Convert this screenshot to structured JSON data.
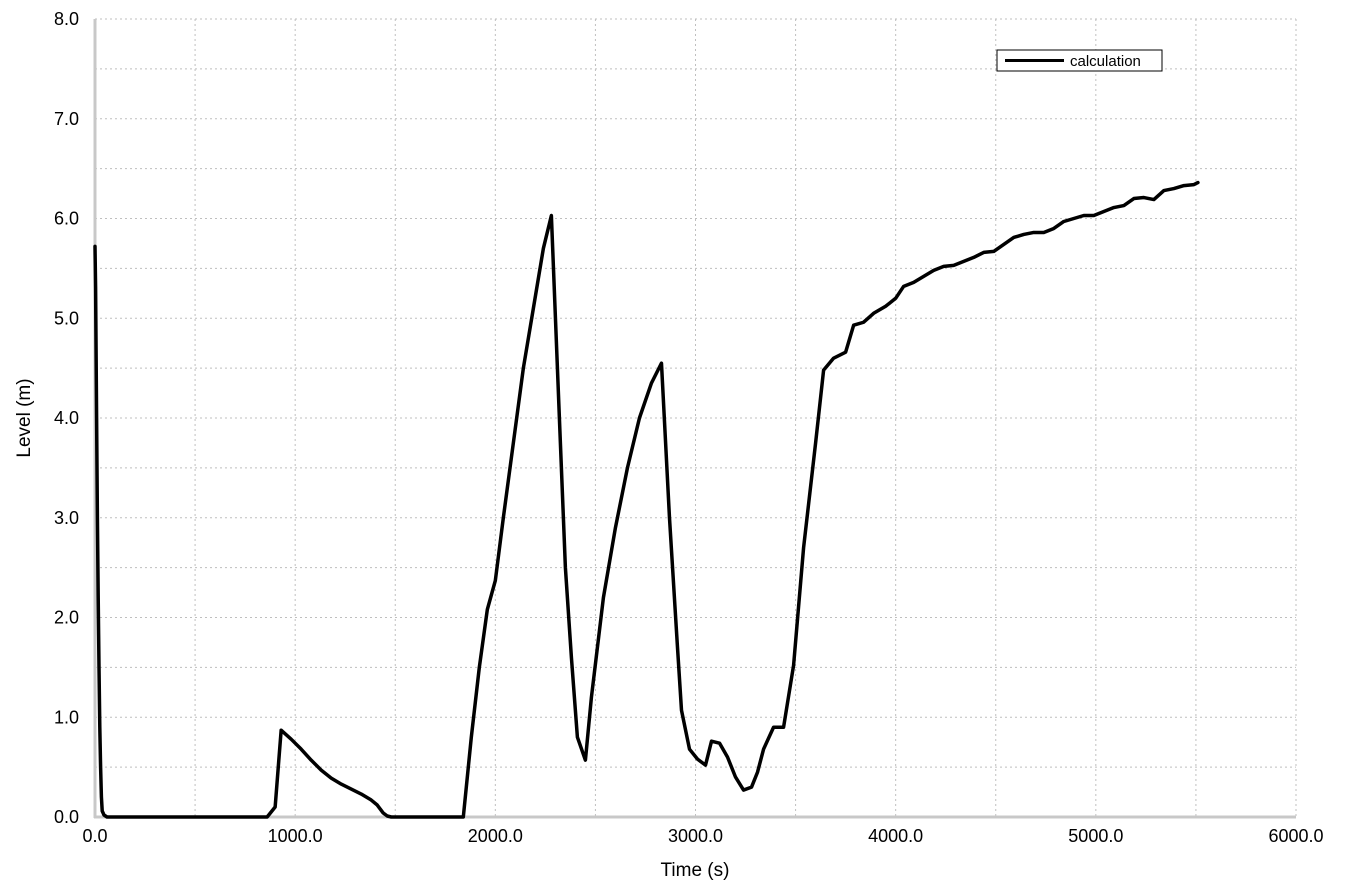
{
  "chart_data": {
    "type": "line",
    "title": "",
    "xlabel": "Time (s)",
    "ylabel": "Level (m)",
    "xlim": [
      0,
      6000
    ],
    "ylim": [
      0,
      8
    ],
    "x_ticks": [
      "0.0",
      "1000.0",
      "2000.0",
      "3000.0",
      "4000.0",
      "5000.0",
      "6000.0"
    ],
    "y_ticks": [
      "0.0",
      "1.0",
      "2.0",
      "3.0",
      "4.0",
      "5.0",
      "6.0",
      "7.0",
      "8.0"
    ],
    "grid": true,
    "legend_position": "top-right",
    "series": [
      {
        "name": "calculation",
        "color": "#000000",
        "points": [
          [
            0,
            5.72
          ],
          [
            3,
            5.3
          ],
          [
            8,
            4.0
          ],
          [
            12,
            3.0
          ],
          [
            16,
            2.2
          ],
          [
            20,
            1.5
          ],
          [
            24,
            0.9
          ],
          [
            28,
            0.5
          ],
          [
            32,
            0.2
          ],
          [
            36,
            0.06
          ],
          [
            45,
            0.02
          ],
          [
            60,
            0.0
          ],
          [
            860,
            0.0
          ],
          [
            900,
            0.1
          ],
          [
            930,
            0.87
          ],
          [
            980,
            0.78
          ],
          [
            1030,
            0.68
          ],
          [
            1080,
            0.57
          ],
          [
            1130,
            0.47
          ],
          [
            1180,
            0.39
          ],
          [
            1230,
            0.33
          ],
          [
            1280,
            0.28
          ],
          [
            1330,
            0.23
          ],
          [
            1380,
            0.17
          ],
          [
            1410,
            0.12
          ],
          [
            1440,
            0.04
          ],
          [
            1460,
            0.01
          ],
          [
            1480,
            0.0
          ],
          [
            1840,
            0.0
          ],
          [
            1880,
            0.8
          ],
          [
            1920,
            1.5
          ],
          [
            1960,
            2.08
          ],
          [
            2000,
            2.37
          ],
          [
            2040,
            3.0
          ],
          [
            2090,
            3.75
          ],
          [
            2140,
            4.5
          ],
          [
            2190,
            5.1
          ],
          [
            2240,
            5.7
          ],
          [
            2280,
            6.03
          ],
          [
            2320,
            4.0
          ],
          [
            2350,
            2.5
          ],
          [
            2380,
            1.6
          ],
          [
            2410,
            0.8
          ],
          [
            2450,
            0.57
          ],
          [
            2480,
            1.2
          ],
          [
            2540,
            2.2
          ],
          [
            2600,
            2.9
          ],
          [
            2660,
            3.5
          ],
          [
            2720,
            4.0
          ],
          [
            2780,
            4.35
          ],
          [
            2830,
            4.55
          ],
          [
            2870,
            3.0
          ],
          [
            2910,
            1.7
          ],
          [
            2930,
            1.07
          ],
          [
            2970,
            0.68
          ],
          [
            3010,
            0.58
          ],
          [
            3050,
            0.52
          ],
          [
            3080,
            0.76
          ],
          [
            3120,
            0.74
          ],
          [
            3160,
            0.6
          ],
          [
            3200,
            0.4
          ],
          [
            3240,
            0.27
          ],
          [
            3280,
            0.3
          ],
          [
            3310,
            0.45
          ],
          [
            3340,
            0.68
          ],
          [
            3390,
            0.9
          ],
          [
            3440,
            0.9
          ],
          [
            3490,
            1.52
          ],
          [
            3540,
            2.7
          ],
          [
            3600,
            3.75
          ],
          [
            3640,
            4.48
          ],
          [
            3690,
            4.6
          ],
          [
            3750,
            4.66
          ],
          [
            3790,
            4.93
          ],
          [
            3840,
            4.96
          ],
          [
            3890,
            5.05
          ],
          [
            3950,
            5.12
          ],
          [
            4000,
            5.2
          ],
          [
            4040,
            5.32
          ],
          [
            4090,
            5.36
          ],
          [
            4140,
            5.42
          ],
          [
            4190,
            5.48
          ],
          [
            4240,
            5.52
          ],
          [
            4290,
            5.53
          ],
          [
            4340,
            5.57
          ],
          [
            4390,
            5.61
          ],
          [
            4440,
            5.66
          ],
          [
            4490,
            5.67
          ],
          [
            4540,
            5.74
          ],
          [
            4590,
            5.81
          ],
          [
            4640,
            5.84
          ],
          [
            4690,
            5.86
          ],
          [
            4740,
            5.86
          ],
          [
            4790,
            5.9
          ],
          [
            4840,
            5.97
          ],
          [
            4890,
            6.0
          ],
          [
            4940,
            6.03
          ],
          [
            4990,
            6.03
          ],
          [
            5040,
            6.07
          ],
          [
            5090,
            6.11
          ],
          [
            5140,
            6.13
          ],
          [
            5190,
            6.2
          ],
          [
            5240,
            6.21
          ],
          [
            5290,
            6.19
          ],
          [
            5340,
            6.28
          ],
          [
            5390,
            6.3
          ],
          [
            5440,
            6.33
          ],
          [
            5490,
            6.34
          ],
          [
            5510,
            6.36
          ]
        ]
      }
    ]
  }
}
